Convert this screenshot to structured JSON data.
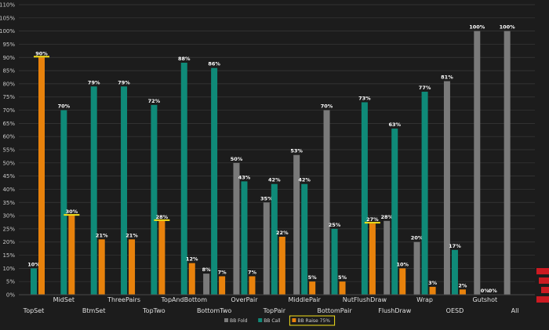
{
  "chart_data": {
    "type": "bar",
    "categories": [
      "TopSet",
      "MidSet",
      "BtmSet",
      "ThreePairs",
      "TopTwo",
      "TopAndBottom",
      "BottomTwo",
      "OverPair",
      "TopPair",
      "MiddlePair",
      "BottomPair",
      "NutFlushDraw",
      "FlushDraw",
      "Wrap",
      "OESD",
      "Gutshot",
      "All"
    ],
    "series": [
      {
        "name": "BB Fold",
        "color": "#7a7a7a",
        "values": [
          0,
          0,
          0,
          0,
          0,
          0,
          8,
          50,
          35,
          53,
          70,
          0,
          28,
          20,
          81,
          100,
          100
        ]
      },
      {
        "name": "BB Call",
        "color": "#0f8a78",
        "values": [
          10,
          70,
          79,
          79,
          72,
          88,
          86,
          43,
          42,
          42,
          25,
          73,
          63,
          77,
          17,
          0,
          0
        ]
      },
      {
        "name": "BB Raise 75%",
        "color": "#e8820c",
        "values": [
          90,
          30,
          21,
          21,
          28,
          12,
          7,
          7,
          22,
          5,
          5,
          27,
          10,
          3,
          2,
          0,
          0
        ]
      }
    ],
    "data_labels": [
      [
        null,
        null,
        null,
        null,
        null,
        null,
        "8%",
        "50%",
        "35%",
        "53%",
        "70%",
        null,
        "28%",
        "20%",
        "81%",
        "100%",
        "100%"
      ],
      [
        "10%",
        "70%",
        "79%",
        "79%",
        "72%",
        "88%",
        "86%",
        "43%",
        "42%",
        "42%",
        "25%",
        "73%",
        "63%",
        "77%",
        "17%",
        "0%",
        null
      ],
      [
        "90%",
        "30%",
        "21%",
        "21%",
        "28%",
        "12%",
        "7%",
        "7%",
        "22%",
        "5%",
        "5%",
        "27%",
        "10%",
        "3%",
        "2%",
        "0%",
        null
      ]
    ],
    "highlighted_labels": [
      "TopSet",
      "MidSet",
      "TopTwo",
      "NutFlushDraw"
    ],
    "y_ticks": [
      "0%",
      "5%",
      "10%",
      "15%",
      "20%",
      "25%",
      "30%",
      "35%",
      "40%",
      "45%",
      "50%",
      "55%",
      "60%",
      "65%",
      "70%",
      "75%",
      "80%",
      "85%",
      "90%",
      "95%",
      "100%",
      "105%",
      "110%"
    ],
    "ylim": [
      0,
      110
    ],
    "grid": true,
    "legend": {
      "position": "bottom",
      "highlighted": "BB Raise 75%"
    },
    "highlight_color": "#f5e11a",
    "logo_color": "#cc1a22"
  }
}
